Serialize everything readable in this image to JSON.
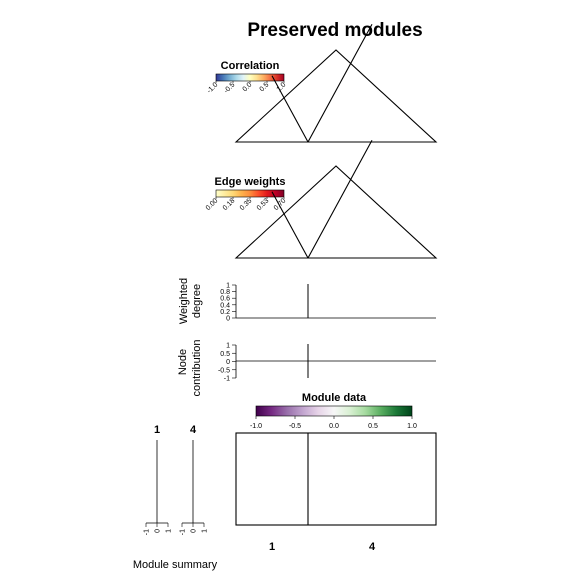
{
  "title": "Preserved modules",
  "correlation_legend": {
    "title": "Correlation",
    "ticks": [
      "-1.0",
      "-0.5",
      "0.0",
      "0.5",
      "1.0"
    ],
    "colors": [
      "#313695",
      "#4575b4",
      "#74add1",
      "#abd9e9",
      "#e0f3f8",
      "#ffffbf",
      "#fee090",
      "#fdae61",
      "#f46d43",
      "#d73027",
      "#a50026"
    ]
  },
  "edge_legend": {
    "title": "Edge weights",
    "ticks": [
      "0.00",
      "0.18",
      "0.35",
      "0.53",
      "0.70"
    ],
    "colors": [
      "#ffffcc",
      "#ffeda0",
      "#fed976",
      "#feb24c",
      "#fd8d3c",
      "#fc4e2a",
      "#e31a1c",
      "#bd0026",
      "#800026"
    ]
  },
  "weighted_degree": {
    "ylabel_line1": "Weighted",
    "ylabel_line2": "degree",
    "ticks": [
      "1",
      "0.8",
      "0.6",
      "0.4",
      "0.2",
      "0"
    ]
  },
  "node_contribution": {
    "ylabel_line1": "Node",
    "ylabel_line2": "contribution",
    "ticks": [
      "1",
      "0.5",
      "0",
      "-0.5",
      "-1"
    ]
  },
  "module_data_legend": {
    "title": "Module data",
    "ticks": [
      "-1.0",
      "-0.5",
      "0.0",
      "0.5",
      "1.0"
    ],
    "colors": [
      "#40004b",
      "#762a83",
      "#9970ab",
      "#c2a5cf",
      "#e7d4e8",
      "#f7f7f7",
      "#d9f0d3",
      "#a6dba0",
      "#5aae61",
      "#1b7837",
      "#00441b"
    ]
  },
  "module_summary": {
    "label": "Module summary",
    "modules": [
      "1",
      "4"
    ],
    "axis_ticks": [
      "-1",
      "0",
      "1"
    ]
  },
  "chart_data": {
    "type": "heatmap",
    "title": "Preserved modules",
    "modules": [
      "1",
      "4"
    ],
    "module_node_fraction": [
      0.36,
      0.64
    ],
    "correlation_range": [
      -1,
      1
    ],
    "edge_weight_range": [
      0,
      0.7
    ],
    "weighted_degree_ylim": [
      0,
      1
    ],
    "node_contribution_ylim": [
      -1,
      1
    ],
    "module_data_range": [
      -1,
      1
    ],
    "summary_xlim": [
      -1,
      1
    ]
  }
}
